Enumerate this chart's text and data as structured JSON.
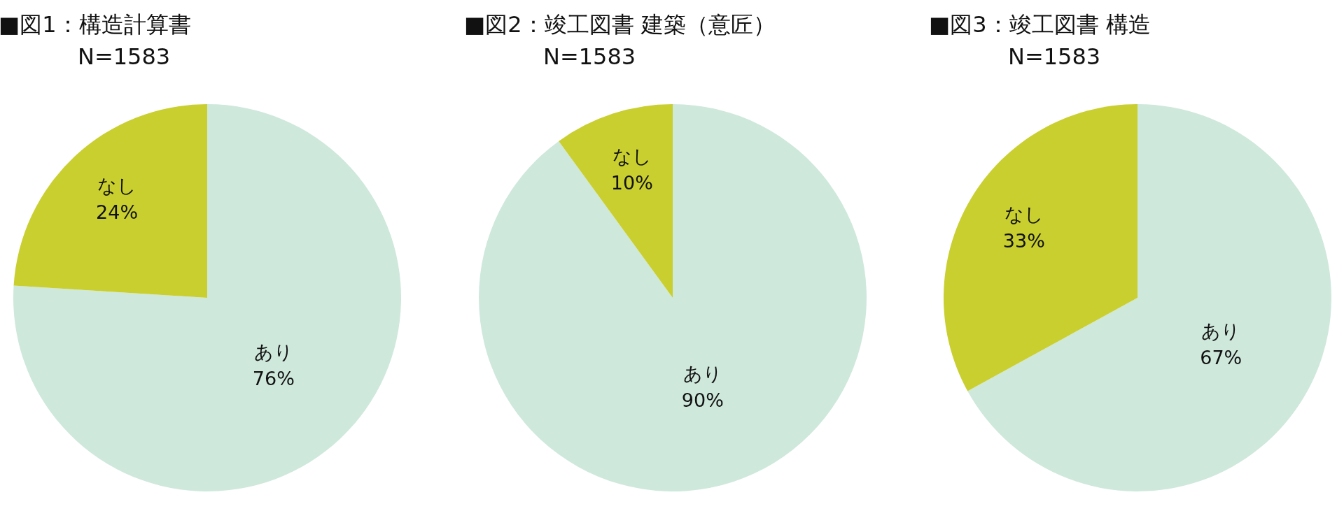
{
  "chart_data": [
    {
      "type": "pie",
      "title": "■図1：構造計算書",
      "subtitle": "N=1583",
      "categories": [
        "あり",
        "なし"
      ],
      "values": [
        76,
        24
      ],
      "value_labels": [
        "76%",
        "24%"
      ],
      "colors": [
        "#cfe8dc",
        "#c9cf2e"
      ]
    },
    {
      "type": "pie",
      "title": "■図2：竣工図書 建築（意匠）",
      "subtitle": "N=1583",
      "categories": [
        "あり",
        "なし"
      ],
      "values": [
        90,
        10
      ],
      "value_labels": [
        "90%",
        "10%"
      ],
      "colors": [
        "#cfe8dc",
        "#c9cf2e"
      ]
    },
    {
      "type": "pie",
      "title": "■図3：竣工図書 構造",
      "subtitle": "N=1583",
      "categories": [
        "あり",
        "なし"
      ],
      "values": [
        67,
        33
      ],
      "value_labels": [
        "67%",
        "33%"
      ],
      "colors": [
        "#cfe8dc",
        "#c9cf2e"
      ]
    }
  ]
}
